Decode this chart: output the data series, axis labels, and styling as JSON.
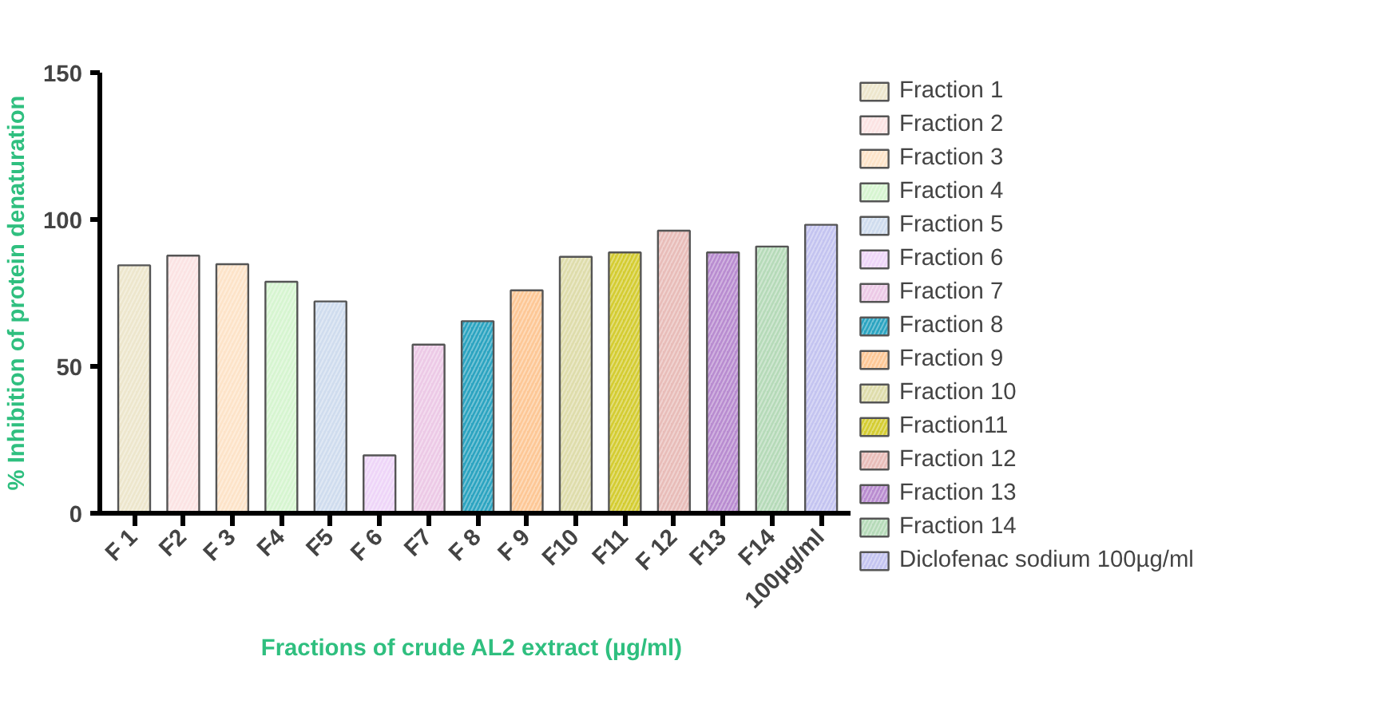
{
  "chart_data": {
    "type": "bar",
    "xlabel": "Fractions of crude AL2 extract  (µg/ml)",
    "ylabel": "% Inhibition of protein denaturation",
    "categories": [
      "F 1",
      "F2",
      "F 3",
      "F4",
      "F5",
      "F 6",
      "F7",
      "F 8",
      "F 9",
      "F10",
      "F11",
      "F 12",
      "F13",
      "F14",
      "100µg/ml"
    ],
    "ylim": [
      0,
      150
    ],
    "yticks": [
      0,
      50,
      100,
      150
    ],
    "grid": false,
    "legend": "right",
    "series": [
      {
        "name": "Fraction 1",
        "color": "#ede6cc",
        "values": [
          84.4,
          null,
          null,
          null,
          null,
          null,
          null,
          null,
          null,
          null,
          null,
          null,
          null,
          null,
          null
        ]
      },
      {
        "name": "Fraction 2",
        "color": "#fbe3e3",
        "values": [
          null,
          87.7,
          null,
          null,
          null,
          null,
          null,
          null,
          null,
          null,
          null,
          null,
          null,
          null,
          null
        ]
      },
      {
        "name": "Fraction 3",
        "color": "#fde3c8",
        "values": [
          null,
          null,
          84.8,
          null,
          null,
          null,
          null,
          null,
          null,
          null,
          null,
          null,
          null,
          null,
          null
        ]
      },
      {
        "name": "Fraction 4",
        "color": "#d6f5d0",
        "values": [
          null,
          null,
          null,
          78.8,
          null,
          null,
          null,
          null,
          null,
          null,
          null,
          null,
          null,
          null,
          null
        ]
      },
      {
        "name": "Fraction 5",
        "color": "#cfdcee",
        "values": [
          null,
          null,
          null,
          null,
          72.1,
          null,
          null,
          null,
          null,
          null,
          null,
          null,
          null,
          null,
          null
        ]
      },
      {
        "name": "Fraction 6",
        "color": "#eed5f8",
        "values": [
          null,
          null,
          null,
          null,
          null,
          19.7,
          null,
          null,
          null,
          null,
          null,
          null,
          null,
          null,
          null
        ]
      },
      {
        "name": "Fraction 7",
        "color": "#ecc9e6",
        "values": [
          null,
          null,
          null,
          null,
          null,
          null,
          57.4,
          null,
          null,
          null,
          null,
          null,
          null,
          null,
          null
        ]
      },
      {
        "name": "Fraction 8",
        "color": "#2aa3c0",
        "values": [
          null,
          null,
          null,
          null,
          null,
          null,
          null,
          65.4,
          null,
          null,
          null,
          null,
          null,
          null,
          null
        ]
      },
      {
        "name": "Fraction 9",
        "color": "#fdc795",
        "values": [
          null,
          null,
          null,
          null,
          null,
          null,
          null,
          null,
          75.9,
          null,
          null,
          null,
          null,
          null,
          null
        ]
      },
      {
        "name": "Fraction 10",
        "color": "#dedcaa",
        "values": [
          null,
          null,
          null,
          null,
          null,
          null,
          null,
          null,
          null,
          87.3,
          null,
          null,
          null,
          null,
          null
        ]
      },
      {
        "name": "Fraction11",
        "color": "#d4cc30",
        "values": [
          null,
          null,
          null,
          null,
          null,
          null,
          null,
          null,
          null,
          null,
          88.8,
          null,
          null,
          null,
          null
        ]
      },
      {
        "name": "Fraction 12",
        "color": "#e8bcb8",
        "values": [
          null,
          null,
          null,
          null,
          null,
          null,
          null,
          null,
          null,
          null,
          null,
          96.2,
          null,
          null,
          null
        ]
      },
      {
        "name": "Fraction 13",
        "color": "#b88bd0",
        "values": [
          null,
          null,
          null,
          null,
          null,
          null,
          null,
          null,
          null,
          null,
          null,
          null,
          88.8,
          null,
          null
        ]
      },
      {
        "name": "Fraction 14",
        "color": "#b5dab8",
        "values": [
          null,
          null,
          null,
          null,
          null,
          null,
          null,
          null,
          null,
          null,
          null,
          null,
          null,
          90.8,
          null
        ]
      },
      {
        "name": "Diclofenac sodium 100µg/ml",
        "color": "#c3c3f0",
        "values": [
          null,
          null,
          null,
          null,
          null,
          null,
          null,
          null,
          null,
          null,
          null,
          null,
          null,
          null,
          98.2
        ]
      }
    ]
  }
}
